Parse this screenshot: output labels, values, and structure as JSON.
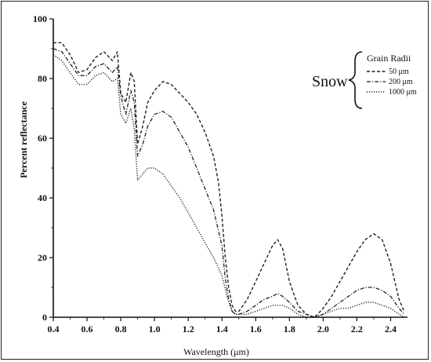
{
  "chart_data": {
    "type": "line",
    "title": "",
    "xlabel": "Wavelength (μm)",
    "ylabel": "Percent reflectance",
    "xlim": [
      0.4,
      2.5
    ],
    "ylim": [
      0,
      100
    ],
    "x_ticks": [
      "0.4",
      "0.6",
      "0.8",
      "1.0",
      "1.2",
      "1.4",
      "1.6",
      "1.8",
      "2.0",
      "2.2",
      "2.4"
    ],
    "y_ticks": [
      "0",
      "20",
      "40",
      "60",
      "80",
      "100"
    ],
    "grid": false,
    "legend": {
      "group_label": "Snow",
      "title": "Grain Radii",
      "placement": "top-right"
    },
    "series": [
      {
        "name": "50 μm",
        "dash": "dashed",
        "points": [
          [
            0.4,
            92
          ],
          [
            0.45,
            92
          ],
          [
            0.5,
            88
          ],
          [
            0.55,
            82
          ],
          [
            0.6,
            83
          ],
          [
            0.65,
            87
          ],
          [
            0.7,
            89
          ],
          [
            0.75,
            86
          ],
          [
            0.78,
            89
          ],
          [
            0.8,
            75
          ],
          [
            0.83,
            72
          ],
          [
            0.86,
            82
          ],
          [
            0.88,
            79
          ],
          [
            0.9,
            58
          ],
          [
            0.93,
            64
          ],
          [
            0.96,
            72
          ],
          [
            1.0,
            76
          ],
          [
            1.05,
            79
          ],
          [
            1.1,
            78
          ],
          [
            1.15,
            75
          ],
          [
            1.2,
            72
          ],
          [
            1.25,
            68
          ],
          [
            1.3,
            62
          ],
          [
            1.35,
            54
          ],
          [
            1.38,
            45
          ],
          [
            1.4,
            34
          ],
          [
            1.42,
            20
          ],
          [
            1.44,
            10
          ],
          [
            1.46,
            4
          ],
          [
            1.48,
            2
          ],
          [
            1.5,
            2
          ],
          [
            1.55,
            6
          ],
          [
            1.6,
            12
          ],
          [
            1.65,
            18
          ],
          [
            1.7,
            24
          ],
          [
            1.73,
            26
          ],
          [
            1.76,
            23
          ],
          [
            1.8,
            12
          ],
          [
            1.85,
            4
          ],
          [
            1.9,
            1
          ],
          [
            1.95,
            0
          ],
          [
            2.0,
            3
          ],
          [
            2.05,
            7
          ],
          [
            2.1,
            12
          ],
          [
            2.15,
            17
          ],
          [
            2.2,
            22
          ],
          [
            2.25,
            26
          ],
          [
            2.3,
            28
          ],
          [
            2.35,
            26
          ],
          [
            2.4,
            18
          ],
          [
            2.45,
            6
          ],
          [
            2.48,
            2
          ]
        ]
      },
      {
        "name": "200 μm",
        "dash": "dash-dot",
        "points": [
          [
            0.4,
            90
          ],
          [
            0.45,
            89
          ],
          [
            0.5,
            85
          ],
          [
            0.55,
            81
          ],
          [
            0.6,
            81
          ],
          [
            0.65,
            84
          ],
          [
            0.7,
            85
          ],
          [
            0.75,
            82
          ],
          [
            0.78,
            84
          ],
          [
            0.8,
            74
          ],
          [
            0.83,
            68
          ],
          [
            0.86,
            76
          ],
          [
            0.88,
            72
          ],
          [
            0.9,
            54
          ],
          [
            0.93,
            58
          ],
          [
            0.96,
            64
          ],
          [
            1.0,
            68
          ],
          [
            1.05,
            69
          ],
          [
            1.1,
            67
          ],
          [
            1.15,
            62
          ],
          [
            1.2,
            57
          ],
          [
            1.25,
            50
          ],
          [
            1.3,
            43
          ],
          [
            1.35,
            36
          ],
          [
            1.4,
            24
          ],
          [
            1.42,
            13
          ],
          [
            1.44,
            6
          ],
          [
            1.46,
            2
          ],
          [
            1.48,
            1
          ],
          [
            1.5,
            1
          ],
          [
            1.55,
            2
          ],
          [
            1.6,
            4
          ],
          [
            1.65,
            6
          ],
          [
            1.7,
            7
          ],
          [
            1.73,
            8
          ],
          [
            1.76,
            7
          ],
          [
            1.8,
            5
          ],
          [
            1.85,
            2
          ],
          [
            1.9,
            1
          ],
          [
            1.95,
            0
          ],
          [
            2.0,
            1
          ],
          [
            2.05,
            3
          ],
          [
            2.1,
            5
          ],
          [
            2.15,
            7
          ],
          [
            2.2,
            9
          ],
          [
            2.25,
            10
          ],
          [
            2.3,
            10
          ],
          [
            2.35,
            9
          ],
          [
            2.4,
            7
          ],
          [
            2.45,
            3
          ],
          [
            2.48,
            1
          ]
        ]
      },
      {
        "name": "1000 μm",
        "dash": "dotted",
        "points": [
          [
            0.4,
            88
          ],
          [
            0.45,
            86
          ],
          [
            0.5,
            82
          ],
          [
            0.55,
            78
          ],
          [
            0.6,
            78
          ],
          [
            0.65,
            81
          ],
          [
            0.7,
            82
          ],
          [
            0.75,
            79
          ],
          [
            0.78,
            80
          ],
          [
            0.8,
            68
          ],
          [
            0.83,
            65
          ],
          [
            0.86,
            70
          ],
          [
            0.88,
            63
          ],
          [
            0.9,
            46
          ],
          [
            0.93,
            48
          ],
          [
            0.96,
            50
          ],
          [
            1.0,
            50
          ],
          [
            1.05,
            48
          ],
          [
            1.1,
            44
          ],
          [
            1.15,
            40
          ],
          [
            1.2,
            35
          ],
          [
            1.25,
            30
          ],
          [
            1.3,
            25
          ],
          [
            1.35,
            20
          ],
          [
            1.4,
            14
          ],
          [
            1.43,
            7
          ],
          [
            1.46,
            2
          ],
          [
            1.48,
            1
          ],
          [
            1.5,
            1
          ],
          [
            1.55,
            1
          ],
          [
            1.6,
            2
          ],
          [
            1.65,
            3
          ],
          [
            1.7,
            4
          ],
          [
            1.73,
            4
          ],
          [
            1.76,
            4
          ],
          [
            1.8,
            3
          ],
          [
            1.85,
            1
          ],
          [
            1.9,
            0
          ],
          [
            1.95,
            0
          ],
          [
            2.0,
            1
          ],
          [
            2.05,
            2
          ],
          [
            2.1,
            3
          ],
          [
            2.15,
            3
          ],
          [
            2.2,
            4
          ],
          [
            2.25,
            5
          ],
          [
            2.3,
            5
          ],
          [
            2.35,
            4
          ],
          [
            2.4,
            3
          ],
          [
            2.45,
            1
          ],
          [
            2.48,
            0
          ]
        ]
      }
    ]
  }
}
